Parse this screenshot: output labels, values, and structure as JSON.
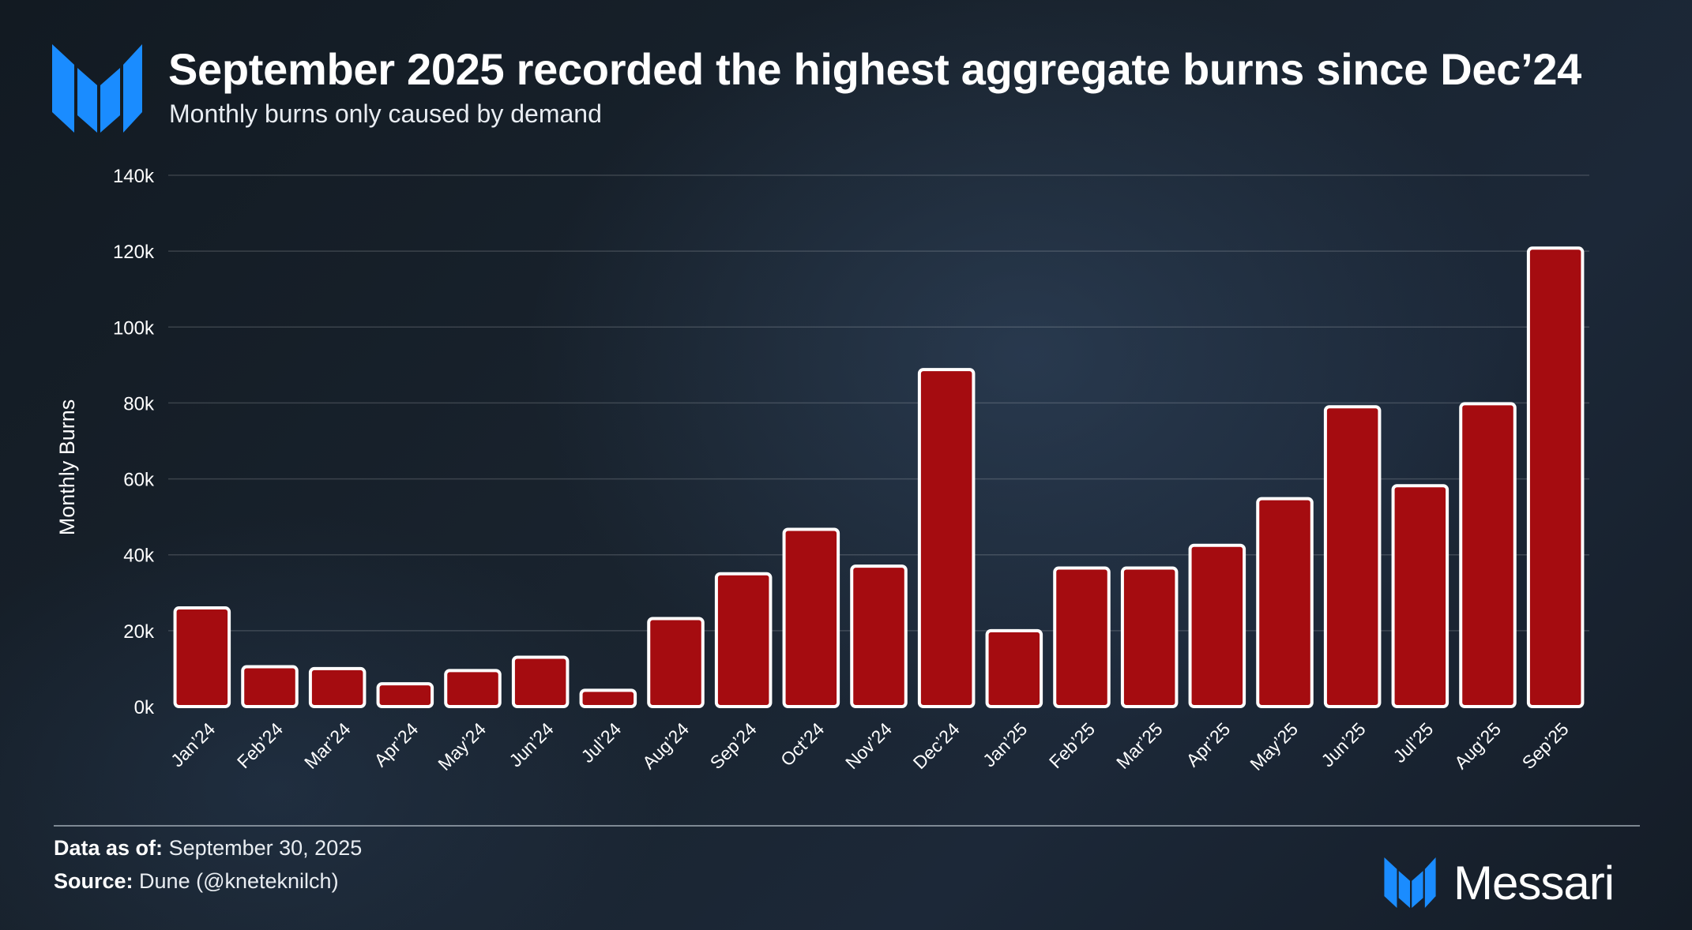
{
  "header": {
    "title": "September 2025 recorded the highest aggregate burns since Dec’24",
    "subtitle": "Monthly burns only caused by demand",
    "logo_icon": "messari-logo-icon"
  },
  "chart_data": {
    "type": "bar",
    "title": "September 2025 recorded the highest aggregate burns since Dec’24",
    "subtitle": "Monthly burns only caused by demand",
    "xlabel": "",
    "ylabel": "Monthly Burns",
    "ylim": [
      0,
      140000
    ],
    "yticks": [
      0,
      20000,
      40000,
      60000,
      80000,
      100000,
      120000,
      140000
    ],
    "ytick_labels": [
      "0k",
      "20k",
      "40k",
      "60k",
      "80k",
      "100k",
      "120k",
      "140k"
    ],
    "grid": true,
    "legend": "none",
    "bar_color": "#a50c10",
    "bar_border_color": "#ffffff",
    "categories": [
      "Jan’24",
      "Feb’24",
      "Mar’24",
      "Apr’24",
      "May’24",
      "Jun’24",
      "Jul’24",
      "Aug’24",
      "Sep’24",
      "Oct’24",
      "Nov’24",
      "Dec’24",
      "Jan’25",
      "Feb’25",
      "Mar’25",
      "Apr’25",
      "May’25",
      "Jun’25",
      "Jul’25",
      "Aug’25",
      "Sep’25"
    ],
    "values": [
      26000,
      10500,
      10000,
      6000,
      9500,
      13000,
      4300,
      23200,
      35000,
      46700,
      37000,
      88800,
      20000,
      36500,
      36500,
      42500,
      54800,
      79000,
      58200,
      79800,
      120800
    ]
  },
  "footer": {
    "data_as_of_label": "Data as of:",
    "data_as_of_value": "September 30, 2025",
    "source_label": "Source:",
    "source_value": "Dune (@kneteknilch)",
    "brand_name": "Messari",
    "brand_icon": "messari-logo-icon"
  },
  "colors": {
    "accent_blue": "#1a8cff",
    "bar": "#a50c10"
  }
}
